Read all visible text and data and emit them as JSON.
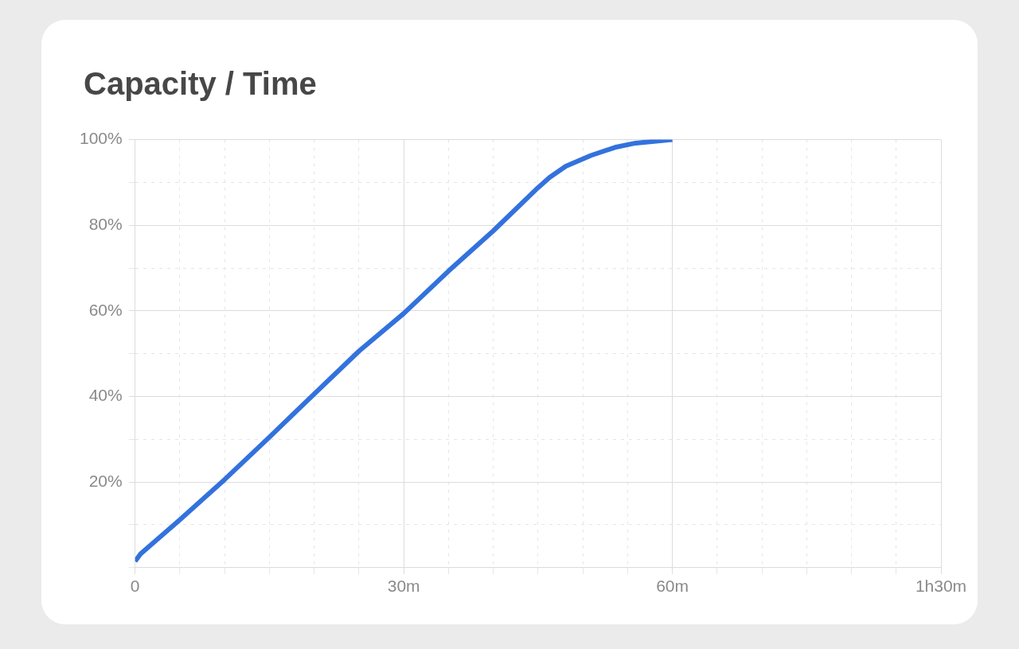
{
  "chart_data": {
    "type": "line",
    "title": "Capacity / Time",
    "x": [
      0,
      0.6,
      5,
      10,
      15,
      20,
      25,
      30,
      35,
      40,
      45,
      46.3,
      48.1,
      50.9,
      53.6,
      55.9,
      60
    ],
    "series": [
      {
        "color": "#3372dd",
        "values": [
          1.5,
          3.2,
          11.2,
          20.6,
          30.5,
          40.6,
          50.6,
          59.4,
          69.3,
          78.7,
          88.8,
          91.2,
          93.8,
          96.3,
          98.2,
          99.2,
          100
        ]
      }
    ],
    "xlim": [
      0,
      90
    ],
    "xticks": [
      {
        "value": 0,
        "label": "0"
      },
      {
        "value": 5,
        "label": null
      },
      {
        "value": 10,
        "label": null
      },
      {
        "value": 15,
        "label": null
      },
      {
        "value": 20,
        "label": null
      },
      {
        "value": 25,
        "label": null
      },
      {
        "value": 30,
        "label": "30m"
      },
      {
        "value": 35,
        "label": null
      },
      {
        "value": 40,
        "label": null
      },
      {
        "value": 45,
        "label": null
      },
      {
        "value": 50,
        "label": null
      },
      {
        "value": 55,
        "label": null
      },
      {
        "value": 60,
        "label": "60m"
      },
      {
        "value": 65,
        "label": null
      },
      {
        "value": 70,
        "label": null
      },
      {
        "value": 75,
        "label": null
      },
      {
        "value": 80,
        "label": null
      },
      {
        "value": 85,
        "label": null
      },
      {
        "value": 90,
        "label": "1h30m"
      }
    ],
    "ylim": [
      0,
      100
    ],
    "yticks": [
      {
        "value": 0,
        "label": null
      },
      {
        "value": 10,
        "label": null
      },
      {
        "value": 20,
        "label": "20%"
      },
      {
        "value": 30,
        "label": null
      },
      {
        "value": 40,
        "label": "40%"
      },
      {
        "value": 50,
        "label": null
      },
      {
        "value": 60,
        "label": "60%"
      },
      {
        "value": 70,
        "label": null
      },
      {
        "value": 80,
        "label": "80%"
      },
      {
        "value": 90,
        "label": null
      },
      {
        "value": 100,
        "label": "100%"
      }
    ],
    "grid": true,
    "legend": false,
    "marker": "none",
    "line_style": "solid"
  }
}
